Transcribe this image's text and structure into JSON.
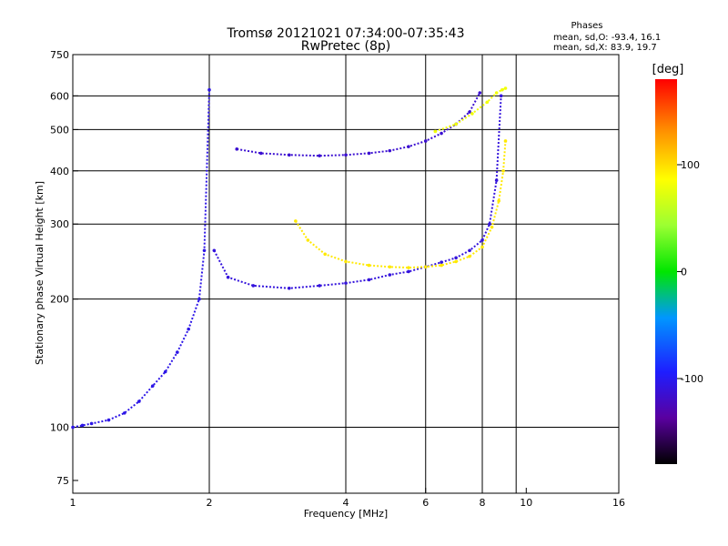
{
  "chart_data": {
    "type": "scatter",
    "title": "Tromsø 20121021 07:34:00-07:35:43",
    "subtitle": "RwPretec (8p)",
    "stats": {
      "header": "Phases",
      "line1": "mean, sd,O: -93.4, 16.1",
      "line2": "mean, sd,X:  83.9, 19.7"
    },
    "xlabel": "Frequency [MHz]",
    "ylabel": "Stationary phase Virtual Height [km]",
    "xscale": "log",
    "yscale": "log",
    "xlim": [
      1,
      16
    ],
    "ylim": [
      70,
      750
    ],
    "xticks": [
      1,
      2,
      4,
      6,
      8,
      10,
      16
    ],
    "yticks": [
      75,
      100,
      200,
      300,
      400,
      500,
      600,
      750
    ],
    "xgrid": [
      2,
      4,
      6,
      8,
      9.5
    ],
    "ygrid": [
      100,
      200,
      300,
      400,
      500,
      600
    ],
    "colorbar": {
      "label": "[deg]",
      "min": -180,
      "max": 180,
      "ticks": [
        100,
        0,
        -100
      ]
    },
    "traces": [
      {
        "name": "",
        "phase": -105,
        "x": [
          1.0,
          1.05,
          1.1,
          1.2,
          1.3,
          1.4,
          1.5,
          1.6,
          1.7,
          1.8,
          1.9,
          1.95,
          2.0
        ],
        "y": [
          100,
          101,
          102,
          104,
          108,
          115,
          125,
          135,
          150,
          170,
          200,
          260,
          620
        ]
      },
      {
        "name": "",
        "phase": -110,
        "x": [
          2.05,
          2.2,
          2.5,
          3.0,
          3.5,
          4.0,
          4.5,
          5.0,
          5.5,
          6.0,
          6.5,
          7.0,
          7.5,
          8.0,
          8.3,
          8.6,
          8.8
        ],
        "y": [
          260,
          225,
          215,
          212,
          215,
          218,
          222,
          228,
          232,
          238,
          244,
          250,
          260,
          275,
          300,
          380,
          600
        ]
      },
      {
        "name": "",
        "phase": -115,
        "x": [
          2.3,
          2.6,
          3.0,
          3.5,
          4.0,
          4.5,
          5.0,
          5.5,
          6.0,
          6.5,
          7.0,
          7.5,
          7.9
        ],
        "y": [
          450,
          440,
          436,
          434,
          436,
          440,
          446,
          456,
          470,
          490,
          515,
          550,
          610
        ]
      },
      {
        "name": "",
        "phase": 95,
        "x": [
          3.1,
          3.3,
          3.6,
          4.0,
          4.5,
          5.0,
          5.5,
          6.0,
          6.5,
          7.0,
          7.5,
          8.0,
          8.4,
          8.7,
          8.9,
          9.0
        ],
        "y": [
          305,
          275,
          255,
          245,
          240,
          238,
          237,
          238,
          240,
          245,
          252,
          265,
          295,
          340,
          400,
          470
        ]
      },
      {
        "name": "",
        "phase": 80,
        "x": [
          6.3,
          7.0,
          7.6,
          8.2,
          8.6,
          8.85,
          9.0
        ],
        "y": [
          495,
          515,
          545,
          580,
          610,
          620,
          625
        ]
      }
    ]
  }
}
